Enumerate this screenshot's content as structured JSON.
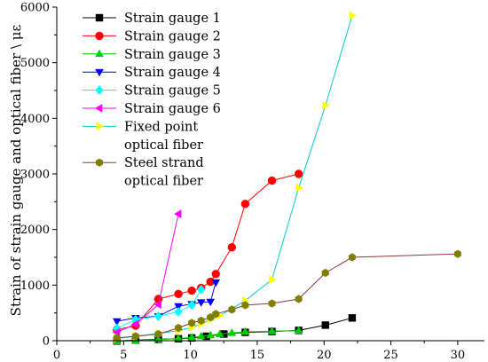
{
  "chart_data": {
    "type": "line",
    "xlabel": "",
    "ylabel": "Strain of strain gauge and  optical fiber \\ με",
    "xlim": [
      0,
      32
    ],
    "ylim": [
      0,
      6000
    ],
    "xticks": [
      0,
      5,
      10,
      15,
      20,
      25,
      30
    ],
    "yticks": [
      0,
      1000,
      2000,
      3000,
      4000,
      5000,
      6000
    ],
    "grid": false,
    "legend_position": "top-left",
    "series": [
      {
        "name": "Strain gauge 1",
        "color": "#000000",
        "marker": "square",
        "x": [
          4.5,
          5.9,
          7.6,
          9.1,
          10.1,
          11.2,
          12.5,
          14.1,
          16.1,
          18.1,
          20.1,
          22.1
        ],
        "y": [
          -5,
          10,
          25,
          35,
          50,
          80,
          120,
          150,
          165,
          185,
          280,
          410
        ]
      },
      {
        "name": "Strain gauge 2",
        "color": "#ff0000",
        "marker": "circle",
        "x": [
          4.5,
          5.9,
          7.6,
          9.1,
          10.1,
          10.8,
          11.5,
          11.9,
          13.1,
          14.1,
          16.1,
          18.1
        ],
        "y": [
          200,
          270,
          750,
          840,
          900,
          950,
          1060,
          1200,
          1680,
          2460,
          2880,
          3000
        ]
      },
      {
        "name": "Strain gauge 3",
        "color": "#00cc00",
        "marker": "triangle-up",
        "x": [
          4.5,
          5.9,
          7.6,
          9.1,
          10.1,
          10.8,
          11.5,
          12.2,
          13.1,
          14.1,
          16.1,
          18.1
        ],
        "y": [
          -10,
          0,
          20,
          40,
          60,
          80,
          100,
          120,
          140,
          160,
          170,
          180
        ]
      },
      {
        "name": "Strain gauge 4",
        "color": "#0000ff",
        "marker": "triangle-down",
        "x": [
          4.5,
          5.9,
          7.6,
          9.1,
          10.1,
          10.8,
          11.5,
          11.9
        ],
        "y": [
          350,
          410,
          440,
          620,
          660,
          690,
          700,
          1050
        ]
      },
      {
        "name": "Strain gauge 5",
        "color": "#00ffff",
        "marker": "diamond",
        "x": [
          4.5,
          5.9,
          7.6,
          9.1,
          10.1,
          10.8
        ],
        "y": [
          220,
          380,
          440,
          520,
          640,
          920
        ]
      },
      {
        "name": "Strain gauge 6",
        "color": "#ff00ff",
        "marker": "triangle-left",
        "x": [
          4.5,
          5.9,
          7.6,
          9.1
        ],
        "y": [
          150,
          300,
          650,
          2280
        ]
      },
      {
        "name": "Fixed point\noptical fiber",
        "color": "#00cccc",
        "marker": "triangle-right",
        "marker_color": "#ffff00",
        "x": [
          4.5,
          5.9,
          7.6,
          9.1,
          10.1,
          10.8,
          11.5,
          12.2,
          14.1,
          16.1,
          18.1,
          20.1,
          22.1
        ],
        "y": [
          40,
          80,
          130,
          180,
          240,
          300,
          380,
          450,
          720,
          1100,
          2750,
          4230,
          5850
        ]
      },
      {
        "name": "Steel strand\noptical fiber",
        "color": "#8b3a3a",
        "marker": "hexagon",
        "marker_color": "#808000",
        "x": [
          4.5,
          5.9,
          7.6,
          9.1,
          10.1,
          10.8,
          11.5,
          11.9,
          13.1,
          14.1,
          16.1,
          18.1,
          20.1,
          22.1,
          30.0
        ],
        "y": [
          50,
          80,
          120,
          230,
          320,
          360,
          420,
          480,
          560,
          640,
          670,
          750,
          1220,
          1500,
          1560
        ]
      }
    ]
  }
}
